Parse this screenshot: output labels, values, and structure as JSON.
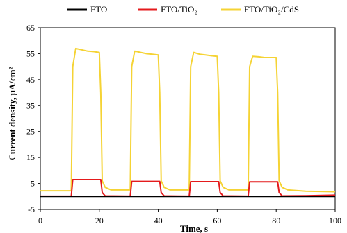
{
  "chart_data": {
    "type": "line",
    "title": "",
    "xlabel": "Time, s",
    "ylabel": "Current density, µA/cm²",
    "xlim": [
      0,
      100
    ],
    "ylim": [
      -5,
      65
    ],
    "xticks": [
      "0",
      "20",
      "40",
      "60",
      "80",
      "100"
    ],
    "yticks": [
      "-5",
      "5",
      "15",
      "25",
      "35",
      "45",
      "55",
      "65"
    ],
    "grid": false,
    "legend_position": "top",
    "series": [
      {
        "name": "FTO",
        "color": "#000000",
        "x": [
          0,
          100
        ],
        "y": [
          0,
          0
        ]
      },
      {
        "name": "FTO/TiO₂",
        "color": "#e41a1c",
        "x": [
          0,
          10.5,
          11,
          12,
          20.5,
          21,
          22,
          30.5,
          31,
          32,
          40.5,
          41,
          42,
          50.5,
          51,
          52,
          60.5,
          61,
          62,
          70.5,
          71,
          72,
          80.5,
          81,
          82,
          90,
          100
        ],
        "y": [
          0.1,
          0.1,
          6.5,
          6.5,
          6.5,
          1.5,
          0.2,
          0.1,
          5.8,
          5.8,
          5.8,
          1.5,
          0.2,
          0.1,
          5.7,
          5.7,
          5.7,
          1.5,
          0.2,
          0.1,
          5.6,
          5.6,
          5.6,
          1.5,
          0.2,
          0.3,
          0.5
        ]
      },
      {
        "name": "FTO/TiO₂/CdS",
        "color": "#f5d334",
        "x": [
          0,
          10.5,
          11,
          12,
          14,
          16,
          18,
          20,
          20.5,
          21,
          22,
          24,
          30.5,
          31,
          32,
          34,
          36,
          38,
          40,
          40.5,
          41,
          42,
          44,
          50.5,
          51,
          52,
          54,
          56,
          58,
          60,
          60.5,
          61,
          62,
          64,
          70.5,
          71,
          72,
          74,
          76,
          78,
          80,
          80.5,
          81,
          82,
          84,
          90,
          100
        ],
        "y": [
          2.2,
          2.2,
          50,
          57,
          56.5,
          56,
          55.8,
          55.5,
          40,
          6,
          3.5,
          2.5,
          2.5,
          50,
          56,
          55.5,
          55,
          54.8,
          54.5,
          40,
          6,
          3.5,
          2.5,
          2.5,
          50,
          55.5,
          54.8,
          54.5,
          54.2,
          54,
          40,
          6,
          3.5,
          2.5,
          2.5,
          50,
          54,
          53.8,
          53.5,
          53.5,
          53.5,
          40,
          6,
          3.5,
          2.5,
          2,
          1.8
        ]
      }
    ]
  }
}
